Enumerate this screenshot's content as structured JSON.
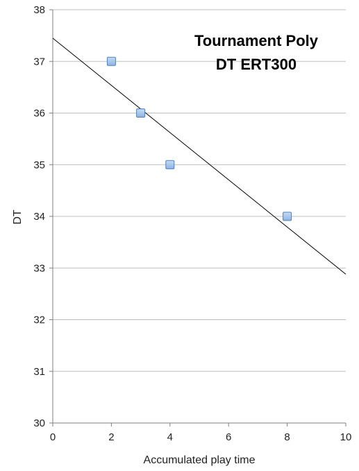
{
  "chart_data": {
    "type": "scatter",
    "title_lines": [
      "Tournament Poly",
      "DT ERT300"
    ],
    "xlabel": "Accumulated play time",
    "ylabel": "DT",
    "xlim": [
      0,
      10
    ],
    "ylim": [
      30,
      38
    ],
    "x_ticks": [
      "0",
      "2",
      "4",
      "6",
      "8",
      "10"
    ],
    "y_ticks": [
      "30",
      "31",
      "32",
      "33",
      "34",
      "35",
      "36",
      "37",
      "38"
    ],
    "grid": "horizontal",
    "legend": "none",
    "series": [
      {
        "points": [
          {
            "x": 2,
            "y": 37
          },
          {
            "x": 3,
            "y": 36
          },
          {
            "x": 4,
            "y": 35
          },
          {
            "x": 8,
            "y": 34
          }
        ]
      }
    ],
    "trendline": {
      "type": "linear",
      "x": [
        0,
        10
      ],
      "y": [
        37.45,
        32.88
      ]
    },
    "colors": {
      "marker_fill": "#8db3e2",
      "marker_stroke": "#4f81bd",
      "trendline": "#000000",
      "grid": "#bfbfbf",
      "axis": "#7f7f7f"
    }
  }
}
